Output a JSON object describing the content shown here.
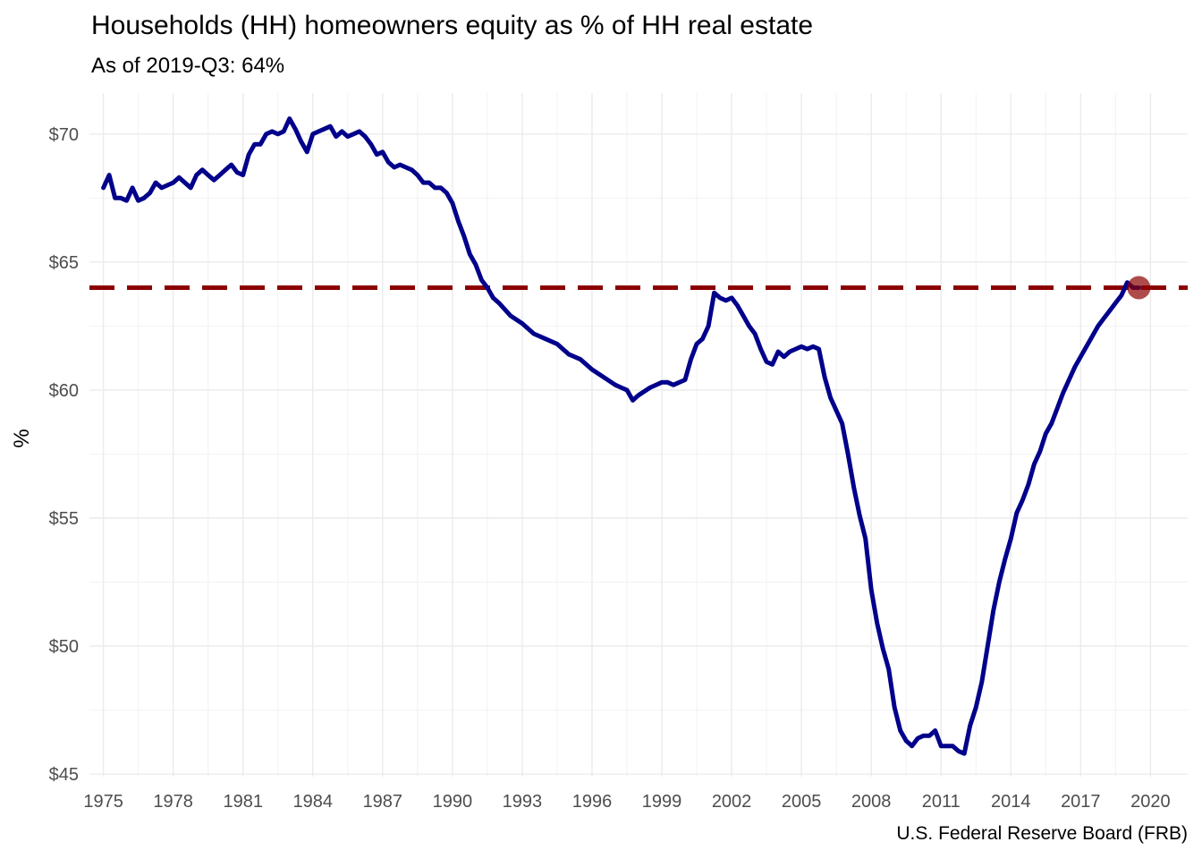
{
  "chart_data": {
    "type": "line",
    "title": "Households (HH) homeowners equity as % of HH real estate",
    "subtitle": "As of 2019-Q3: 64%",
    "caption": "U.S. Federal Reserve Board (FRB)",
    "xlabel": "",
    "ylabel": "%",
    "xlim": [
      1974.4,
      2021.6
    ],
    "ylim": [
      44.9,
      71.6
    ],
    "x_ticks": [
      1975,
      1978,
      1981,
      1984,
      1987,
      1990,
      1993,
      1996,
      1999,
      2002,
      2005,
      2008,
      2011,
      2014,
      2017,
      2020
    ],
    "y_ticks": [
      45,
      50,
      55,
      60,
      65,
      70
    ],
    "y_tick_labels": [
      "$45",
      "$50",
      "$55",
      "$60",
      "$65",
      "$70"
    ],
    "grid": true,
    "line_color": "#00008b",
    "reference_color": "#8b0000",
    "reference_line": {
      "y": 64,
      "style": "dashed"
    },
    "highlight_point": {
      "x": 2019.5,
      "y": 64
    },
    "series": [
      {
        "x": [
          1975.0,
          1975.25,
          1975.5,
          1975.75,
          1976.0,
          1976.25,
          1976.5,
          1976.75,
          1977.0,
          1977.25,
          1977.5,
          1977.75,
          1978.0,
          1978.25,
          1978.5,
          1978.75,
          1979.0,
          1979.25,
          1979.5,
          1979.75,
          1980.0,
          1980.25,
          1980.5,
          1980.75,
          1981.0,
          1981.25,
          1981.5,
          1981.75,
          1982.0,
          1982.25,
          1982.5,
          1982.75,
          1983.0,
          1983.25,
          1983.5,
          1983.75,
          1984.0,
          1984.25,
          1984.5,
          1984.75,
          1985.0,
          1985.25,
          1985.5,
          1985.75,
          1986.0,
          1986.25,
          1986.5,
          1986.75,
          1987.0,
          1987.25,
          1987.5,
          1987.75,
          1988.0,
          1988.25,
          1988.5,
          1988.75,
          1989.0,
          1989.25,
          1989.5,
          1989.75,
          1990.0,
          1990.25,
          1990.5,
          1990.75,
          1991.0,
          1991.25,
          1991.5,
          1991.75,
          1992.0,
          1992.5,
          1993.0,
          1993.5,
          1994.0,
          1994.5,
          1995.0,
          1995.5,
          1996.0,
          1996.5,
          1997.0,
          1997.25,
          1997.5,
          1997.75,
          1998.0,
          1998.5,
          1999.0,
          1999.25,
          1999.5,
          1999.75,
          2000.0,
          2000.25,
          2000.5,
          2000.75,
          2001.0,
          2001.25,
          2001.5,
          2001.75,
          2002.0,
          2002.25,
          2002.5,
          2002.75,
          2003.0,
          2003.25,
          2003.5,
          2003.75,
          2004.0,
          2004.25,
          2004.5,
          2004.75,
          2005.0,
          2005.25,
          2005.5,
          2005.75,
          2006.0,
          2006.25,
          2006.5,
          2006.75,
          2007.0,
          2007.25,
          2007.5,
          2007.75,
          2008.0,
          2008.25,
          2008.5,
          2008.75,
          2009.0,
          2009.25,
          2009.5,
          2009.75,
          2010.0,
          2010.25,
          2010.5,
          2010.75,
          2011.0,
          2011.25,
          2011.5,
          2011.75,
          2012.0,
          2012.25,
          2012.5,
          2012.75,
          2013.0,
          2013.25,
          2013.5,
          2013.75,
          2014.0,
          2014.25,
          2014.5,
          2014.75,
          2015.0,
          2015.25,
          2015.5,
          2015.75,
          2016.0,
          2016.25,
          2016.5,
          2016.75,
          2017.0,
          2017.25,
          2017.5,
          2017.75,
          2018.0,
          2018.25,
          2018.5,
          2018.75,
          2019.0,
          2019.25,
          2019.5
        ],
        "values": [
          67.9,
          68.4,
          67.5,
          67.5,
          67.4,
          67.9,
          67.4,
          67.5,
          67.7,
          68.1,
          67.9,
          68.0,
          68.1,
          68.3,
          68.1,
          67.9,
          68.4,
          68.6,
          68.4,
          68.2,
          68.4,
          68.6,
          68.8,
          68.5,
          68.4,
          69.2,
          69.6,
          69.6,
          70.0,
          70.1,
          70.0,
          70.1,
          70.6,
          70.2,
          69.7,
          69.3,
          70.0,
          70.1,
          70.2,
          70.3,
          69.9,
          70.1,
          69.9,
          70.0,
          70.1,
          69.9,
          69.6,
          69.2,
          69.3,
          68.9,
          68.7,
          68.8,
          68.7,
          68.6,
          68.4,
          68.1,
          68.1,
          67.9,
          67.9,
          67.7,
          67.3,
          66.6,
          66.0,
          65.3,
          64.9,
          64.3,
          64.0,
          63.6,
          63.4,
          62.9,
          62.6,
          62.2,
          62.0,
          61.8,
          61.4,
          61.2,
          60.8,
          60.5,
          60.2,
          60.1,
          60.0,
          59.6,
          59.8,
          60.1,
          60.3,
          60.3,
          60.2,
          60.3,
          60.4,
          61.2,
          61.8,
          62.0,
          62.5,
          63.8,
          63.6,
          63.5,
          63.6,
          63.3,
          62.9,
          62.5,
          62.2,
          61.6,
          61.1,
          61.0,
          61.5,
          61.3,
          61.5,
          61.6,
          61.7,
          61.6,
          61.7,
          61.6,
          60.5,
          59.7,
          59.2,
          58.7,
          57.5,
          56.2,
          55.1,
          54.2,
          52.2,
          50.9,
          49.9,
          49.1,
          47.6,
          46.7,
          46.3,
          46.1,
          46.4,
          46.5,
          46.5,
          46.7,
          46.1,
          46.1,
          46.1,
          45.9,
          45.8,
          46.9,
          47.6,
          48.6,
          50.0,
          51.4,
          52.5,
          53.4,
          54.2,
          55.2,
          55.7,
          56.3,
          57.1,
          57.6,
          58.3,
          58.7,
          59.3,
          59.9,
          60.4,
          60.9,
          61.3,
          61.7,
          62.1,
          62.5,
          62.8,
          63.1,
          63.4,
          63.7,
          64.2,
          64.0,
          64.0
        ]
      }
    ]
  }
}
